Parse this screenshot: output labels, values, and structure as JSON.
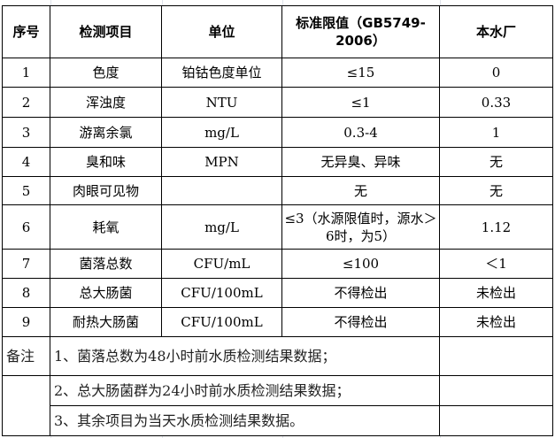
{
  "headers": [
    "序号",
    "检测项目",
    "单位",
    "标准限值（GB5749-2006）",
    "本水厂"
  ],
  "rows": [
    [
      "1",
      "色度",
      "铂钴色度单位",
      "≤15",
      "0"
    ],
    [
      "2",
      "浑浊度",
      "NTU",
      "≤1",
      "0.33"
    ],
    [
      "3",
      "游离余氯",
      "mg/L",
      "0.3-4",
      "1"
    ],
    [
      "4",
      "臭和味",
      "MPN",
      "无异臭、异味",
      "无"
    ],
    [
      "5",
      "肉眼可见物",
      "",
      "无",
      "无"
    ],
    [
      "6",
      "耗氧",
      "mg/L",
      "≤3（水源限值时，源水＞6时，为5）",
      "1.12"
    ],
    [
      "7",
      "菌落总数",
      "CFU/mL",
      "≤100",
      "＜1"
    ],
    [
      "8",
      "总大肠菌",
      "CFU/100mL",
      "不得检出",
      "未检出"
    ],
    [
      "9",
      "耐热大肠菌",
      "CFU/100mL",
      "不得检出",
      "未检出"
    ]
  ],
  "notes": {
    "label": "备注",
    "items": [
      "1、菌落总数为48小时前水质检测结果数据；",
      "2、总大肠菌群为24小时前水质检测结果数据；",
      "3、其余项目为当天水质检测结果数据。"
    ]
  }
}
